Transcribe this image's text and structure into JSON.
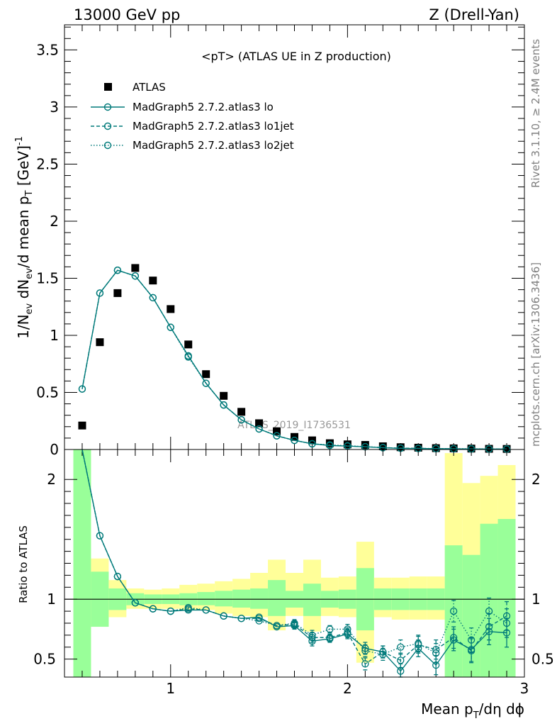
{
  "header": {
    "left": "13000 GeV pp",
    "right": "Z (Drell-Yan)"
  },
  "side_labels": {
    "rivet": "Rivet 3.1.10, ≥ 2.4M events",
    "mcplots": "mcplots.cern.ch [arXiv:1306.3436]"
  },
  "colors": {
    "data": "#000000",
    "mc": "#007a7a",
    "band_1sigma": "#99ff99",
    "band_2sigma": "#ffff99"
  },
  "chart_data": [
    {
      "type": "scatter",
      "panel": "main",
      "title": "<pT> (ATLAS UE in Z production)",
      "watermark": "ATLAS_2019_I1736531",
      "ylabel": "1/N_ev dN_ev/d mean p_T [GeV]^-1",
      "xlim": [
        0.4,
        3.0
      ],
      "ylim": [
        0,
        3.72
      ],
      "yticks": [
        "0",
        "0.5",
        "1",
        "1.5",
        "2",
        "2.5",
        "3",
        "3.5"
      ],
      "legend_position": "top-left",
      "x": [
        0.5,
        0.6,
        0.7,
        0.8,
        0.9,
        1.0,
        1.1,
        1.2,
        1.3,
        1.4,
        1.5,
        1.6,
        1.7,
        1.8,
        1.9,
        2.0,
        2.1,
        2.2,
        2.3,
        2.4,
        2.5,
        2.6,
        2.7,
        2.8,
        2.9
      ],
      "series": [
        {
          "name": "ATLAS",
          "style": "markers",
          "values": [
            0.21,
            0.94,
            1.37,
            1.59,
            1.48,
            1.23,
            0.92,
            0.66,
            0.47,
            0.33,
            0.23,
            0.16,
            0.11,
            0.08,
            0.055,
            0.045,
            0.04,
            0.028,
            0.02,
            0.016,
            0.012,
            0.01,
            0.008,
            0.006,
            0.005
          ]
        },
        {
          "name": "MadGraph5 2.7.2.atlas3 lo",
          "style": "solid",
          "values": [
            0.53,
            1.37,
            1.57,
            1.52,
            1.33,
            1.07,
            0.82,
            0.58,
            0.39,
            0.26,
            0.18,
            0.12,
            0.08,
            0.05,
            0.035,
            0.03,
            0.024,
            0.016,
            0.01,
            0.009,
            0.007,
            0.006,
            0.005,
            0.004,
            0.004
          ]
        },
        {
          "name": "MadGraph5 2.7.2.atlas3 lo1jet",
          "style": "dashed",
          "values": [
            0.53,
            1.37,
            1.57,
            1.52,
            1.33,
            1.07,
            0.82,
            0.58,
            0.39,
            0.26,
            0.18,
            0.12,
            0.08,
            0.05,
            0.036,
            0.031,
            0.024,
            0.016,
            0.012,
            0.01,
            0.007,
            0.006,
            0.005,
            0.004,
            0.004
          ]
        },
        {
          "name": "MadGraph5 2.7.2.atlas3 lo2jet",
          "style": "dotted",
          "values": [
            0.53,
            1.37,
            1.57,
            1.52,
            1.33,
            1.07,
            0.81,
            0.58,
            0.39,
            0.26,
            0.18,
            0.12,
            0.08,
            0.05,
            0.04,
            0.033,
            0.025,
            0.017,
            0.012,
            0.01,
            0.008,
            0.007,
            0.006,
            0.005,
            0.004
          ]
        }
      ]
    },
    {
      "type": "line",
      "panel": "ratio",
      "ylabel": "Ratio to ATLAS",
      "xlabel": "Mean p_T/dη dϕ",
      "xlim": [
        0.4,
        3.0
      ],
      "ylim": [
        0.35,
        2.25
      ],
      "yticks": [
        "0.5",
        "1",
        "2"
      ],
      "xticks": [
        "1",
        "2",
        "3"
      ],
      "bins": [
        [
          0.45,
          0.55
        ],
        [
          0.55,
          0.65
        ],
        [
          0.65,
          0.75
        ],
        [
          0.75,
          0.85
        ],
        [
          0.85,
          0.95
        ],
        [
          0.95,
          1.05
        ],
        [
          1.05,
          1.15
        ],
        [
          1.15,
          1.25
        ],
        [
          1.25,
          1.35
        ],
        [
          1.35,
          1.45
        ],
        [
          1.45,
          1.55
        ],
        [
          1.55,
          1.65
        ],
        [
          1.65,
          1.75
        ],
        [
          1.75,
          1.85
        ],
        [
          1.85,
          1.95
        ],
        [
          1.95,
          2.05
        ],
        [
          2.05,
          2.15
        ],
        [
          2.15,
          2.25
        ],
        [
          2.25,
          2.35
        ],
        [
          2.35,
          2.45
        ],
        [
          2.45,
          2.55
        ],
        [
          2.55,
          2.65
        ],
        [
          2.65,
          2.75
        ],
        [
          2.75,
          2.85
        ],
        [
          2.85,
          2.95
        ]
      ],
      "band_1sigma": [
        [
          0.35,
          2.25
        ],
        [
          0.77,
          1.23
        ],
        [
          0.91,
          1.09
        ],
        [
          0.95,
          1.05
        ],
        [
          0.96,
          1.04
        ],
        [
          0.96,
          1.04
        ],
        [
          0.95,
          1.05
        ],
        [
          0.95,
          1.06
        ],
        [
          0.94,
          1.07
        ],
        [
          0.93,
          1.08
        ],
        [
          0.92,
          1.09
        ],
        [
          0.86,
          1.16
        ],
        [
          0.93,
          1.07
        ],
        [
          0.86,
          1.13
        ],
        [
          0.93,
          1.07
        ],
        [
          0.92,
          1.08
        ],
        [
          0.74,
          1.26
        ],
        [
          0.91,
          1.09
        ],
        [
          0.91,
          1.09
        ],
        [
          0.91,
          1.09
        ],
        [
          0.91,
          1.09
        ],
        [
          0.35,
          1.45
        ],
        [
          0.35,
          1.37
        ],
        [
          0.35,
          1.63
        ],
        [
          0.35,
          1.67
        ]
      ],
      "band_2sigma": [
        [
          0.35,
          2.25
        ],
        [
          0.77,
          1.34
        ],
        [
          0.85,
          1.16
        ],
        [
          0.92,
          1.09
        ],
        [
          0.92,
          1.08
        ],
        [
          0.92,
          1.09
        ],
        [
          0.91,
          1.12
        ],
        [
          0.91,
          1.13
        ],
        [
          0.88,
          1.15
        ],
        [
          0.86,
          1.17
        ],
        [
          0.85,
          1.22
        ],
        [
          0.74,
          1.33
        ],
        [
          0.86,
          1.22
        ],
        [
          0.73,
          1.33
        ],
        [
          0.86,
          1.18
        ],
        [
          0.85,
          1.19
        ],
        [
          0.47,
          1.48
        ],
        [
          0.85,
          1.18
        ],
        [
          0.83,
          1.18
        ],
        [
          0.83,
          1.19
        ],
        [
          0.83,
          1.19
        ],
        [
          0.35,
          2.22
        ],
        [
          0.35,
          1.97
        ],
        [
          0.38,
          2.03
        ],
        [
          0.35,
          2.12
        ]
      ],
      "x": [
        0.5,
        0.6,
        0.7,
        0.8,
        0.9,
        1.0,
        1.1,
        1.2,
        1.3,
        1.4,
        1.5,
        1.6,
        1.7,
        1.8,
        1.9,
        2.0,
        2.1,
        2.2,
        2.3,
        2.4,
        2.5,
        2.6,
        2.7,
        2.8,
        2.9
      ],
      "series": [
        {
          "name": "MadGraph5 2.7.2.atlas3 lo",
          "style": "solid",
          "values": [
            2.55,
            1.53,
            1.19,
            0.97,
            0.92,
            0.9,
            0.91,
            0.91,
            0.86,
            0.84,
            0.85,
            0.77,
            0.78,
            0.65,
            0.67,
            0.71,
            0.59,
            0.56,
            0.4,
            0.59,
            0.45,
            0.66,
            0.58,
            0.73,
            0.72
          ],
          "err": [
            0,
            0,
            0,
            0,
            0,
            0,
            0,
            0,
            0,
            0,
            0,
            0,
            0.03,
            0.04,
            0.03,
            0.04,
            0.05,
            0.05,
            0.06,
            0.07,
            0.08,
            0.09,
            0.1,
            0.11,
            0.12
          ]
        },
        {
          "name": "MadGraph5 2.7.2.atlas3 lo1jet",
          "style": "dashed",
          "values": [
            2.55,
            1.53,
            1.19,
            0.97,
            0.92,
            0.9,
            0.92,
            0.91,
            0.86,
            0.84,
            0.84,
            0.78,
            0.79,
            0.68,
            0.68,
            0.72,
            0.46,
            0.56,
            0.49,
            0.62,
            0.58,
            0.68,
            0.57,
            0.77,
            0.86
          ],
          "err": [
            0,
            0,
            0,
            0,
            0,
            0,
            0,
            0,
            0,
            0,
            0,
            0,
            0.03,
            0.04,
            0.03,
            0.04,
            0.05,
            0.05,
            0.06,
            0.07,
            0.08,
            0.09,
            0.1,
            0.11,
            0.12
          ]
        },
        {
          "name": "MadGraph5 2.7.2.atlas3 lo2jet",
          "style": "dotted",
          "values": [
            2.55,
            1.53,
            1.19,
            0.97,
            0.92,
            0.9,
            0.93,
            0.91,
            0.86,
            0.84,
            0.82,
            0.78,
            0.8,
            0.7,
            0.75,
            0.75,
            0.57,
            0.54,
            0.6,
            0.63,
            0.55,
            0.9,
            0.66,
            0.9,
            0.8
          ],
          "err": [
            0,
            0,
            0,
            0,
            0,
            0,
            0,
            0,
            0,
            0,
            0,
            0,
            0.03,
            0.04,
            0.03,
            0.04,
            0.05,
            0.05,
            0.06,
            0.07,
            0.08,
            0.09,
            0.1,
            0.11,
            0.12
          ]
        }
      ]
    }
  ]
}
